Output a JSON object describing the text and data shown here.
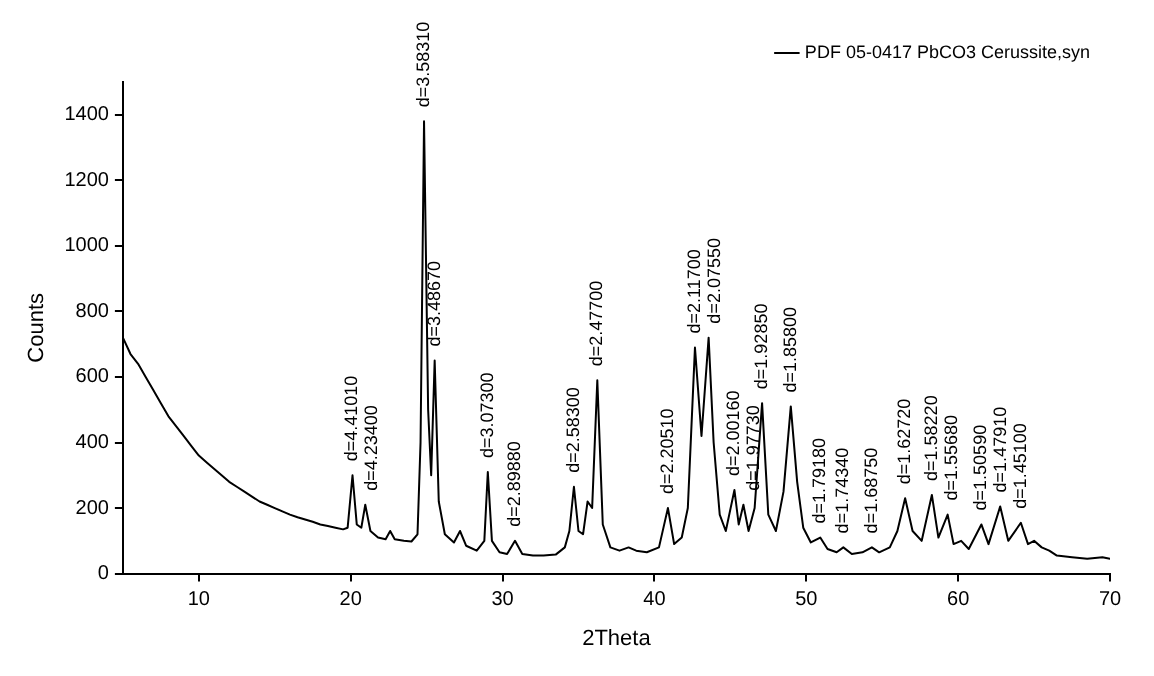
{
  "chart_data": {
    "type": "line",
    "xlabel": "2Theta",
    "ylabel": "Counts",
    "xlim": [
      5,
      70
    ],
    "xticks": [
      10,
      20,
      30,
      40,
      50,
      60,
      70
    ],
    "ylim": [
      0,
      1500
    ],
    "yticks": [
      0,
      200,
      400,
      600,
      800,
      1000,
      1200,
      1400
    ],
    "grid": false,
    "legend": "top right",
    "marker": "none",
    "line_style": "solid",
    "series": [
      {
        "name": "PDF 05-0417 PbCO3 Cerussite,syn",
        "color": "#000000",
        "x": [
          5,
          5.5,
          6,
          6.5,
          7,
          7.5,
          8,
          8.5,
          9,
          9.5,
          10,
          10.5,
          11,
          11.5,
          12,
          12.5,
          13,
          13.5,
          14,
          14.5,
          15,
          15.5,
          16,
          16.5,
          17,
          17.5,
          18,
          18.5,
          19,
          19.5,
          19.8,
          20.12,
          20.4,
          20.7,
          20.96,
          21.3,
          21.8,
          22.3,
          22.6,
          22.9,
          23.5,
          24.0,
          24.4,
          24.6,
          24.83,
          25.1,
          25.3,
          25.53,
          25.8,
          26.2,
          26.8,
          27.2,
          27.6,
          28.3,
          28.8,
          29.03,
          29.3,
          29.8,
          30.3,
          30.82,
          31.3,
          32,
          32.7,
          33.5,
          34.1,
          34.4,
          34.7,
          35.0,
          35.3,
          35.6,
          35.9,
          36.24,
          36.6,
          37.1,
          37.7,
          38.3,
          38.8,
          39.5,
          40.3,
          40.89,
          41.3,
          41.8,
          42.2,
          42.67,
          43.1,
          43.57,
          43.9,
          44.3,
          44.7,
          45.27,
          45.55,
          45.86,
          46.2,
          46.6,
          47.09,
          47.5,
          48.0,
          48.5,
          48.98,
          49.4,
          49.8,
          50.3,
          50.92,
          51.4,
          52.0,
          52.44,
          53.0,
          53.7,
          54.32,
          54.8,
          55.5,
          56.0,
          56.51,
          57.0,
          57.6,
          58.27,
          58.7,
          59.31,
          59.7,
          60.2,
          60.7,
          61.53,
          62.0,
          62.77,
          63.3,
          64.13,
          64.6,
          65.0,
          65.5,
          66.0,
          66.5,
          67.5,
          68.5,
          69.5,
          70
        ],
        "values": [
          720,
          670,
          640,
          600,
          560,
          520,
          480,
          450,
          420,
          390,
          360,
          340,
          320,
          300,
          280,
          265,
          250,
          235,
          220,
          210,
          200,
          190,
          180,
          172,
          165,
          158,
          150,
          145,
          140,
          135,
          140,
          300,
          150,
          140,
          210,
          130,
          110,
          105,
          130,
          105,
          100,
          98,
          120,
          400,
          1380,
          500,
          300,
          650,
          220,
          120,
          95,
          130,
          85,
          70,
          100,
          310,
          100,
          65,
          60,
          100,
          60,
          55,
          55,
          58,
          80,
          130,
          265,
          130,
          120,
          220,
          200,
          590,
          150,
          80,
          70,
          80,
          70,
          65,
          80,
          200,
          90,
          110,
          200,
          690,
          420,
          720,
          400,
          180,
          130,
          255,
          150,
          210,
          130,
          200,
          520,
          180,
          130,
          250,
          510,
          280,
          140,
          95,
          110,
          75,
          65,
          80,
          60,
          65,
          80,
          65,
          80,
          130,
          230,
          130,
          100,
          240,
          110,
          180,
          90,
          100,
          75,
          150,
          90,
          205,
          100,
          155,
          90,
          100,
          80,
          70,
          55,
          50,
          45,
          50,
          45
        ]
      }
    ],
    "annotations": [
      {
        "text": "d=4.41010",
        "x": 20.12,
        "y": 300
      },
      {
        "text": "d=4.23400",
        "x": 20.96,
        "y": 210
      },
      {
        "text": "d=3.58310",
        "x": 24.83,
        "y": 1380
      },
      {
        "text": "d=3.48670",
        "x": 25.53,
        "y": 650
      },
      {
        "text": "d=3.07300",
        "x": 29.03,
        "y": 310
      },
      {
        "text": "d=2.89880",
        "x": 30.82,
        "y": 100
      },
      {
        "text": "d=2.58300",
        "x": 34.7,
        "y": 265
      },
      {
        "text": "d=2.47700",
        "x": 36.24,
        "y": 590
      },
      {
        "text": "d=2.20510",
        "x": 40.89,
        "y": 200
      },
      {
        "text": "d=2.11700",
        "x": 42.67,
        "y": 690
      },
      {
        "text": "d=2.07550",
        "x": 43.57,
        "y": 720
      },
      {
        "text": "d=2.00160",
        "x": 45.27,
        "y": 255
      },
      {
        "text": "d=1.97730",
        "x": 45.86,
        "y": 210
      },
      {
        "text": "d=1.92850",
        "x": 47.09,
        "y": 520
      },
      {
        "text": "d=1.85800",
        "x": 48.98,
        "y": 510
      },
      {
        "text": "d=1.79180",
        "x": 50.92,
        "y": 110
      },
      {
        "text": "d=1.74340",
        "x": 52.44,
        "y": 80
      },
      {
        "text": "d=1.68750",
        "x": 54.32,
        "y": 80
      },
      {
        "text": "d=1.62720",
        "x": 56.51,
        "y": 230
      },
      {
        "text": "d=1.58220",
        "x": 58.27,
        "y": 240
      },
      {
        "text": "d=1.55680",
        "x": 59.31,
        "y": 180
      },
      {
        "text": "d=1.50590",
        "x": 61.53,
        "y": 150
      },
      {
        "text": "d=1.47910",
        "x": 62.77,
        "y": 205
      },
      {
        "text": "d=1.45100",
        "x": 64.13,
        "y": 155
      }
    ]
  }
}
